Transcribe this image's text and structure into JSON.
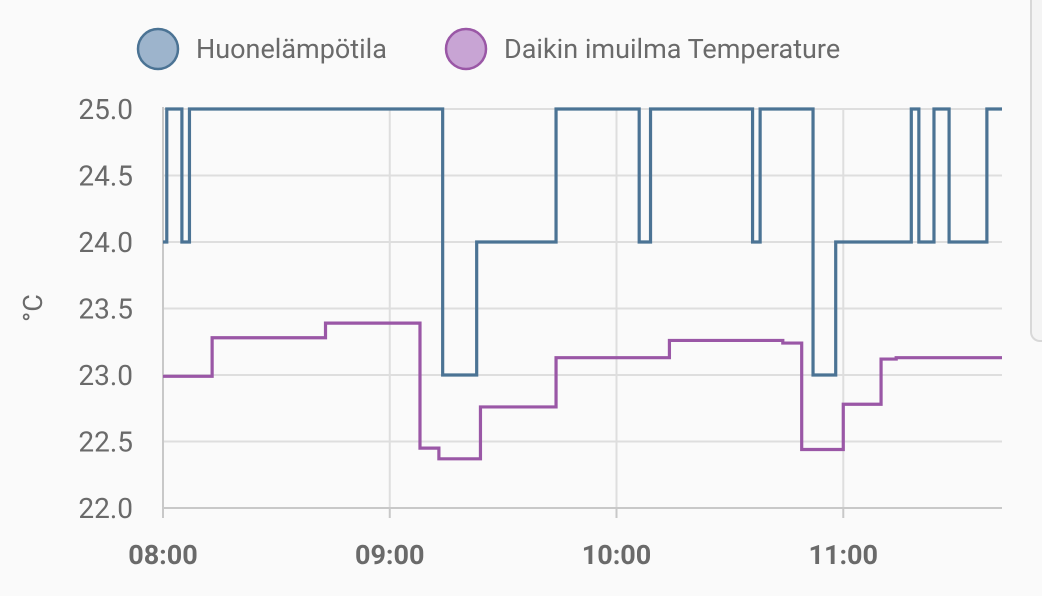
{
  "chart_data": {
    "type": "line",
    "step": true,
    "y_unit": "°C",
    "ylim": [
      22.0,
      25.0
    ],
    "y_ticks": [
      "25.0",
      "24.5",
      "24.0",
      "23.5",
      "23.0",
      "22.5",
      "22.0"
    ],
    "x_ticks": [
      "08:00",
      "09:00",
      "10:00",
      "11:00"
    ],
    "x_range": [
      "08:00",
      "11:42"
    ],
    "grid": true,
    "legend_position": "top",
    "series": [
      {
        "name": "Huonelämpötila",
        "color": "#4b7394",
        "fill": "#9db4cc",
        "points": [
          [
            "08:00",
            24.0
          ],
          [
            "08:01",
            25.0
          ],
          [
            "08:05",
            24.0
          ],
          [
            "08:07",
            25.0
          ],
          [
            "09:14",
            23.0
          ],
          [
            "09:23",
            24.0
          ],
          [
            "09:44",
            25.0
          ],
          [
            "10:06",
            24.0
          ],
          [
            "10:09",
            25.0
          ],
          [
            "10:36",
            24.0
          ],
          [
            "10:38",
            25.0
          ],
          [
            "10:52",
            23.0
          ],
          [
            "10:58",
            24.0
          ],
          [
            "11:18",
            25.0
          ],
          [
            "11:20",
            24.0
          ],
          [
            "11:24",
            25.0
          ],
          [
            "11:28",
            24.0
          ],
          [
            "11:38",
            25.0
          ],
          [
            "11:42",
            25.0
          ]
        ]
      },
      {
        "name": "Daikin imuilma Temperature",
        "color": "#9a57a6",
        "fill": "#c8a4d4",
        "points": [
          [
            "08:00",
            22.99
          ],
          [
            "08:13",
            23.28
          ],
          [
            "08:43",
            23.39
          ],
          [
            "09:08",
            22.45
          ],
          [
            "09:13",
            22.37
          ],
          [
            "09:24",
            22.76
          ],
          [
            "09:44",
            23.13
          ],
          [
            "10:14",
            23.26
          ],
          [
            "10:44",
            23.24
          ],
          [
            "10:49",
            22.44
          ],
          [
            "11:00",
            22.78
          ],
          [
            "11:10",
            23.12
          ],
          [
            "11:14",
            23.13
          ],
          [
            "11:42",
            23.13
          ]
        ]
      }
    ]
  }
}
